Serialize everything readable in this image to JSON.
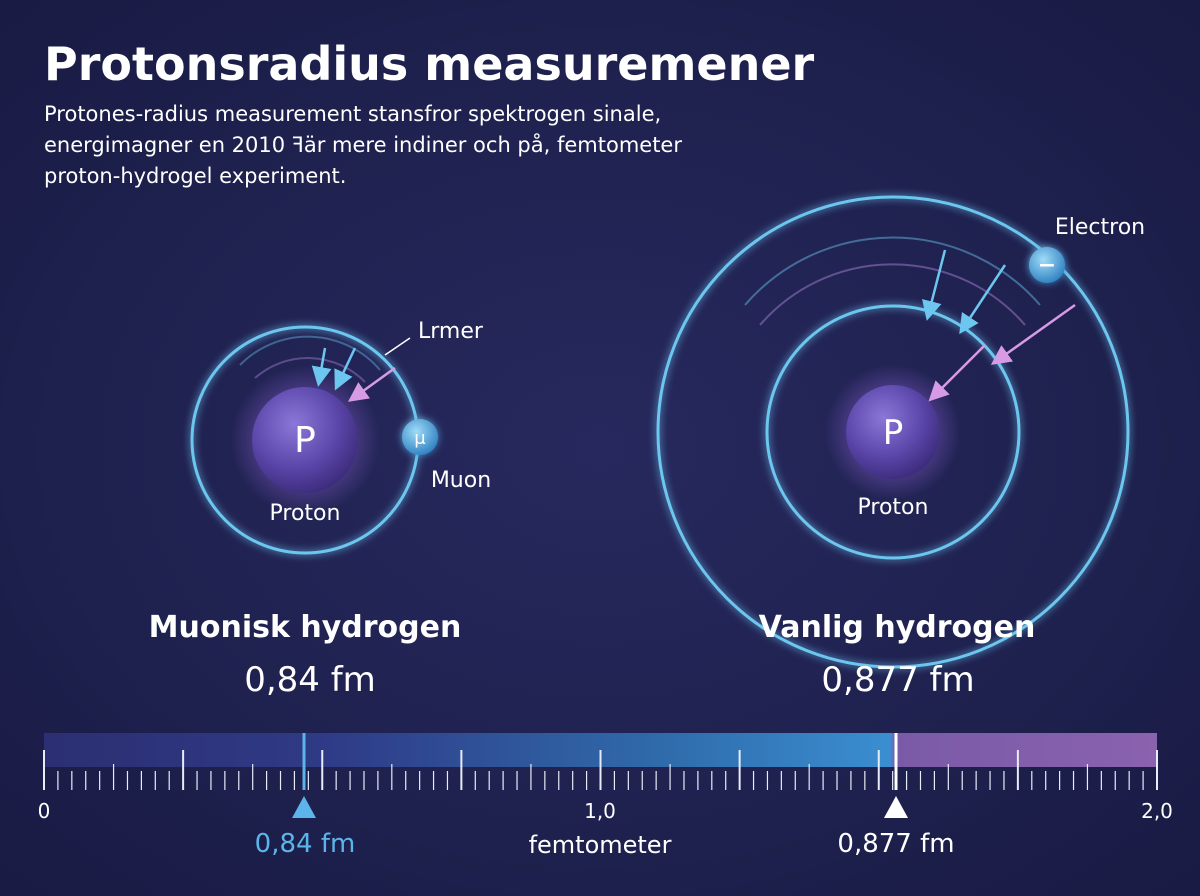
{
  "header": {
    "title": "Protonsradius measuremener",
    "subtitle_lines": [
      "Protones-radius measurement stansfror spektrogen sinale,",
      "energimagner en 2010 ꟻär mere indiner och på, femtometer",
      "proton-hydrogel experiment."
    ]
  },
  "muonic": {
    "orbit_label": "Lrmer",
    "particle_symbol": "μ",
    "particle_label": "Muon",
    "nucleus_symbol": "P",
    "nucleus_label": "Proton",
    "name": "Muonisk hydrogen",
    "radius": "0,84 fm"
  },
  "ordinary": {
    "particle_symbol": "−",
    "particle_label": "Electron",
    "nucleus_symbol": "P",
    "nucleus_label": "Proton",
    "name": "Vanlig hydrogen",
    "radius": "0,877 fm"
  },
  "scale": {
    "tick_labels": [
      "0",
      "1,0",
      "2,0"
    ],
    "unit": "femtometer",
    "markers": [
      "0,84 fm",
      "0,877 fm"
    ]
  }
}
